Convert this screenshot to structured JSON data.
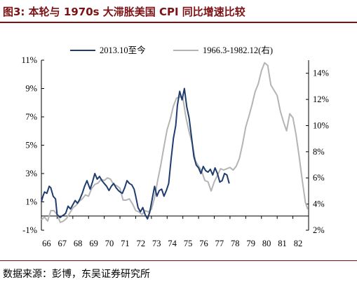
{
  "title": "图3:  本轮与 1970s 大滞胀美国 CPI 同比增速比较",
  "source": "数据来源：彭博，东吴证券研究所",
  "colors": {
    "title": "#7d1214",
    "series_current": "#1f3c6e",
    "series_history": "#b4b4b4"
  },
  "chart_data": {
    "type": "line",
    "title": "本轮与 1970s 大滞胀美国 CPI 同比增速比较",
    "x_tick_labels": [
      "66",
      "67",
      "68",
      "69",
      "70",
      "71",
      "72",
      "73",
      "74",
      "75",
      "76",
      "77",
      "78",
      "79",
      "80",
      "81",
      "82"
    ],
    "x_label_unit": "year of 1966.3-1982.12 timeline (two-digit)",
    "left_axis": {
      "ticks": [
        "-1%",
        "1%",
        "3%",
        "5%",
        "7%",
        "9%",
        "11%"
      ],
      "ylim": [
        -1,
        11
      ]
    },
    "right_axis": {
      "ticks": [
        "2%",
        "4%",
        "6%",
        "8%",
        "10%",
        "12%",
        "14%"
      ],
      "ylim": [
        2,
        15
      ]
    },
    "legend": [
      "2013.10至今",
      "1966.3-1982.12(右)"
    ],
    "legend_position": "top",
    "series": [
      {
        "name": "2013.10至今",
        "axis": "left",
        "x": [
          66.0,
          66.1,
          66.2,
          66.35,
          66.5,
          66.6,
          66.75,
          66.9,
          67.0,
          67.1,
          67.2,
          67.3,
          67.45,
          67.55,
          67.7,
          67.85,
          68.0,
          68.15,
          68.3,
          68.45,
          68.6,
          68.75,
          68.9,
          69.0,
          69.1,
          69.25,
          69.4,
          69.55,
          69.7,
          69.85,
          70.0,
          70.15,
          70.3,
          70.45,
          70.6,
          70.75,
          70.9,
          71.0,
          71.15,
          71.3,
          71.45,
          71.6,
          71.75,
          71.9,
          72.0,
          72.15,
          72.3,
          72.45,
          72.6,
          72.75,
          72.9,
          73.05,
          73.2,
          73.35,
          73.5,
          73.65,
          73.8,
          73.95,
          74.1,
          74.25,
          74.4,
          74.55,
          74.65,
          74.8,
          74.95,
          75.1,
          75.25,
          75.4,
          75.55,
          75.7,
          75.85,
          76.0,
          76.15,
          76.3,
          76.45,
          76.6,
          76.75,
          76.9,
          77.05,
          77.2,
          77.35,
          77.5,
          77.65,
          77.8,
          77.95
        ],
        "y": [
          1.0,
          1.4,
          1.7,
          1.6,
          2.1,
          2.0,
          1.4,
          1.2,
          0.1,
          0.0,
          -0.1,
          0.0,
          0.1,
          0.2,
          0.7,
          0.5,
          0.8,
          1.1,
          0.9,
          1.2,
          1.6,
          2.1,
          2.5,
          2.2,
          1.9,
          2.4,
          3.0,
          2.6,
          2.8,
          2.5,
          2.3,
          2.1,
          1.8,
          2.1,
          2.3,
          2.0,
          1.8,
          1.7,
          1.6,
          2.0,
          2.5,
          2.3,
          2.2,
          1.9,
          1.4,
          0.6,
          0.3,
          0.6,
          0.1,
          -0.2,
          0.3,
          1.2,
          2.1,
          1.4,
          1.8,
          1.9,
          1.4,
          1.8,
          2.3,
          4.0,
          5.5,
          6.4,
          7.8,
          8.8,
          8.2,
          9.0,
          7.7,
          6.9,
          5.6,
          4.2,
          3.6,
          3.4,
          3.0,
          3.5,
          3.2,
          3.1,
          3.3,
          2.9,
          3.4,
          3.0,
          2.4,
          2.5,
          3.0,
          2.9,
          2.3
        ]
      },
      {
        "name": "1966.3-1982.12(右)",
        "axis": "right",
        "x": [
          66.0,
          66.2,
          66.4,
          66.6,
          66.8,
          67.0,
          67.2,
          67.4,
          67.6,
          67.8,
          68.0,
          68.2,
          68.4,
          68.6,
          68.8,
          69.0,
          69.2,
          69.4,
          69.6,
          69.8,
          70.0,
          70.2,
          70.4,
          70.6,
          70.8,
          71.0,
          71.2,
          71.4,
          71.6,
          71.8,
          72.0,
          72.2,
          72.4,
          72.6,
          72.8,
          73.0,
          73.2,
          73.4,
          73.6,
          73.8,
          74.0,
          74.2,
          74.4,
          74.6,
          74.8,
          75.0,
          75.2,
          75.4,
          75.6,
          75.8,
          76.0,
          76.2,
          76.4,
          76.6,
          76.8,
          77.0,
          77.2,
          77.4,
          77.6,
          77.8,
          78.0,
          78.2,
          78.4,
          78.6,
          78.8,
          79.0,
          79.2,
          79.4,
          79.6,
          79.8,
          80.0,
          80.2,
          80.4,
          80.6,
          80.8,
          81.0,
          81.2,
          81.4,
          81.6,
          81.8,
          82.0,
          82.2,
          82.4,
          82.6,
          82.8,
          82.95
        ],
        "y": [
          2.8,
          3.0,
          2.7,
          3.5,
          3.5,
          3.2,
          2.6,
          2.7,
          2.9,
          3.3,
          3.7,
          3.9,
          4.2,
          4.4,
          4.7,
          4.6,
          5.2,
          5.5,
          5.6,
          5.9,
          5.8,
          6.0,
          5.9,
          5.5,
          5.4,
          5.2,
          4.3,
          4.3,
          4.4,
          4.0,
          3.5,
          3.4,
          3.2,
          3.5,
          3.4,
          3.6,
          4.5,
          5.8,
          7.0,
          8.4,
          9.7,
          10.5,
          11.5,
          12.1,
          12.2,
          12.1,
          10.6,
          9.5,
          8.6,
          7.3,
          6.9,
          6.5,
          5.8,
          5.7,
          5.0,
          5.7,
          6.2,
          6.7,
          6.6,
          6.7,
          6.8,
          6.6,
          6.9,
          7.5,
          8.6,
          9.9,
          10.7,
          11.6,
          12.6,
          13.2,
          14.2,
          14.8,
          14.6,
          13.1,
          12.7,
          12.3,
          11.1,
          10.3,
          9.6,
          10.9,
          10.6,
          9.3,
          7.6,
          5.8,
          4.1,
          3.6
        ]
      }
    ]
  }
}
